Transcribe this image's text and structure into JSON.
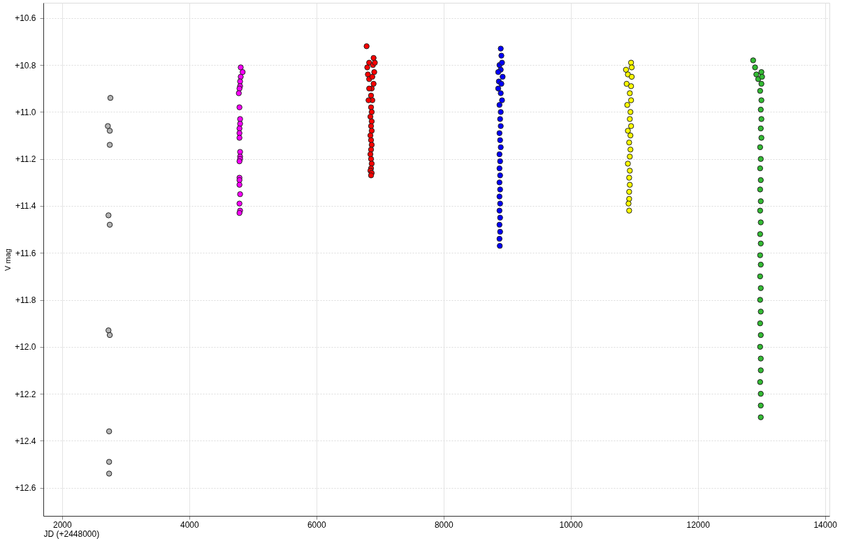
{
  "chart_data": {
    "type": "scatter",
    "xlabel": "JD (+2448000)",
    "ylabel": "V mag",
    "xlim": [
      1705,
      14070
    ],
    "xticks": [
      2000,
      4000,
      6000,
      8000,
      10000,
      12000,
      14000
    ],
    "ylim": [
      12.72,
      10.535
    ],
    "yticks": [
      {
        "value": 10.6,
        "label": "+10.6"
      },
      {
        "value": 10.8,
        "label": "+10.8"
      },
      {
        "value": 11.0,
        "label": "+11.0"
      },
      {
        "value": 11.2,
        "label": "+11.2"
      },
      {
        "value": 11.4,
        "label": "+11.4"
      },
      {
        "value": 11.6,
        "label": "+11.6"
      },
      {
        "value": 11.8,
        "label": "+11.8"
      },
      {
        "value": 12.0,
        "label": "+12.0"
      },
      {
        "value": 12.2,
        "label": "+12.2"
      },
      {
        "value": 12.4,
        "label": "+12.4"
      },
      {
        "value": 12.6,
        "label": "+12.6"
      }
    ],
    "grid": true,
    "legend": false,
    "marker": "circle",
    "series": [
      {
        "color": "#b4b4b4",
        "x": [
          2760,
          2720,
          2750,
          2750,
          2730,
          2750,
          2730,
          2750,
          2740,
          2740,
          2740
        ],
        "values": [
          10.94,
          11.06,
          11.08,
          11.14,
          11.44,
          11.48,
          11.93,
          11.95,
          12.36,
          12.49,
          12.54
        ]
      },
      {
        "color": "#ff00ff",
        "x": [
          4810,
          4840,
          4810,
          4800,
          4800,
          4790,
          4780,
          4790,
          4800,
          4800,
          4790,
          4790,
          4790,
          4800,
          4800,
          4800,
          4790,
          4790,
          4790,
          4790,
          4800,
          4790,
          4800,
          4790
        ],
        "values": [
          10.81,
          10.83,
          10.85,
          10.87,
          10.89,
          10.9,
          10.92,
          10.98,
          11.03,
          11.05,
          11.07,
          11.09,
          11.11,
          11.17,
          11.19,
          11.2,
          11.21,
          11.28,
          11.29,
          11.31,
          11.35,
          11.39,
          11.42,
          11.43
        ]
      },
      {
        "color": "#ff0000",
        "x": [
          6790,
          6830,
          6900,
          6890,
          6920,
          6800,
          6810,
          6830,
          6910,
          6880,
          6900,
          6870,
          6860,
          6880,
          6860,
          6870,
          6850,
          6870,
          6860,
          6870,
          6850,
          6860,
          6870,
          6860,
          6850,
          6860,
          6870,
          6860,
          6850,
          6870,
          6860,
          6820,
          6830
        ],
        "values": [
          10.72,
          10.79,
          10.77,
          10.8,
          10.79,
          10.81,
          10.84,
          10.86,
          10.83,
          10.85,
          10.88,
          10.9,
          10.93,
          10.95,
          10.98,
          11.0,
          11.02,
          11.04,
          11.06,
          11.08,
          11.1,
          11.12,
          11.14,
          11.16,
          11.18,
          11.2,
          11.22,
          11.24,
          11.25,
          11.26,
          11.27,
          10.95,
          10.9
        ]
      },
      {
        "color": "#0000ff",
        "x": [
          8900,
          8910,
          8880,
          8920,
          8900,
          8860,
          8930,
          8870,
          8910,
          8860,
          8900,
          8920,
          8880,
          8900,
          8890,
          8900,
          8880,
          8890,
          8900,
          8880,
          8890,
          8880,
          8890,
          8880,
          8890,
          8880,
          8890,
          8880,
          8890,
          8880,
          8890,
          8880,
          8885
        ],
        "values": [
          10.73,
          10.76,
          10.8,
          10.79,
          10.82,
          10.83,
          10.85,
          10.87,
          10.88,
          10.9,
          10.92,
          10.95,
          10.97,
          11.0,
          11.03,
          11.06,
          11.09,
          11.12,
          11.15,
          11.18,
          11.21,
          11.24,
          11.27,
          11.3,
          11.33,
          11.36,
          11.39,
          11.42,
          11.45,
          11.48,
          11.51,
          11.54,
          11.57
        ]
      },
      {
        "color": "#ffff00",
        "x": [
          10950,
          10960,
          10870,
          10900,
          10960,
          10880,
          10950,
          10930,
          10950,
          10890,
          10940,
          10930,
          10950,
          10900,
          10940,
          10920,
          10940,
          10930,
          10900,
          10930,
          10920,
          10930,
          10920,
          10920,
          10910,
          10920
        ],
        "values": [
          10.79,
          10.81,
          10.82,
          10.84,
          10.85,
          10.88,
          10.89,
          10.92,
          10.95,
          10.97,
          11.0,
          11.03,
          11.06,
          11.08,
          11.1,
          11.13,
          11.16,
          11.19,
          11.22,
          11.25,
          11.28,
          11.31,
          11.34,
          11.37,
          11.39,
          11.42
        ]
      },
      {
        "color": "#33bb33",
        "x": [
          12870,
          12900,
          12920,
          13000,
          12950,
          13010,
          13000,
          12980,
          13000,
          12990,
          13000,
          12990,
          13000,
          12980,
          12990,
          12980,
          12990,
          12980,
          12990,
          12980,
          12990,
          12980,
          12990,
          12980,
          12990,
          12980,
          12990,
          12980,
          12990,
          12980,
          12990,
          12980,
          12990,
          12990,
          12980,
          12990,
          12990,
          12990
        ],
        "values": [
          10.78,
          10.81,
          10.84,
          10.83,
          10.86,
          10.85,
          10.88,
          10.91,
          10.95,
          10.99,
          11.03,
          11.07,
          11.11,
          11.15,
          11.2,
          11.24,
          11.29,
          11.33,
          11.38,
          11.42,
          11.47,
          11.52,
          11.56,
          11.61,
          11.65,
          11.7,
          11.75,
          11.8,
          11.85,
          11.9,
          11.95,
          12.0,
          12.05,
          12.1,
          12.15,
          12.2,
          12.25,
          12.3
        ]
      }
    ]
  }
}
